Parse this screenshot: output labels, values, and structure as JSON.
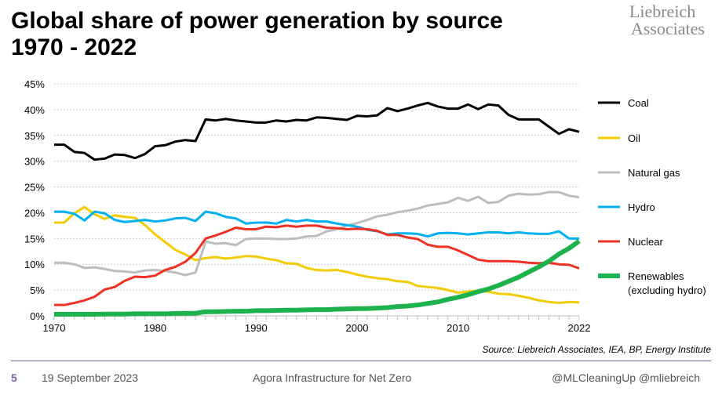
{
  "title_line1": "Global share of power generation by source",
  "title_line2": "1970 - 2022",
  "logo": [
    "Liebreich",
    "Associates"
  ],
  "source": "Source: Liebreich Associates, IEA, BP, Energy Institute",
  "footer": {
    "page": "5",
    "date": "19 September 2023",
    "event": "Agora Infrastructure for Net Zero",
    "handles": "@MLCleaningUp @mliebreich"
  },
  "chart_data": {
    "type": "line",
    "title": "Global share of power generation by source 1970 - 2022",
    "xlim": [
      1970,
      2022
    ],
    "ylim": [
      0,
      45
    ],
    "x_ticks": [
      "1970",
      "1980",
      "1990",
      "2000",
      "2010",
      "2022"
    ],
    "y_ticks": [
      "0%",
      "5%",
      "10%",
      "15%",
      "20%",
      "25%",
      "30%",
      "35%",
      "40%",
      "45%"
    ],
    "grid": true,
    "legend": "right",
    "x_start": 1970,
    "series": [
      {
        "name": "Coal",
        "color": "#000000",
        "width": 3,
        "values": [
          33.2,
          33.2,
          31.8,
          31.6,
          30.3,
          30.5,
          31.3,
          31.2,
          30.6,
          31.4,
          32.9,
          33.1,
          33.8,
          34.1,
          33.9,
          38.1,
          37.9,
          38.2,
          37.9,
          37.7,
          37.5,
          37.5,
          37.9,
          37.7,
          38.0,
          37.9,
          38.5,
          38.4,
          38.2,
          38.0,
          38.8,
          38.7,
          38.9,
          40.3,
          39.7,
          40.2,
          40.8,
          41.3,
          40.6,
          40.2,
          40.2,
          41.0,
          40.1,
          41.0,
          40.8,
          39.0,
          38.1,
          38.1,
          38.1,
          36.7,
          35.3,
          36.2,
          35.7
        ]
      },
      {
        "name": "Oil",
        "color": "#f2cc00",
        "width": 3,
        "values": [
          18.1,
          18.1,
          19.9,
          21.1,
          19.7,
          18.8,
          19.5,
          19.2,
          19.0,
          17.6,
          15.8,
          14.3,
          12.8,
          11.9,
          10.8,
          11.2,
          11.4,
          11.1,
          11.3,
          11.6,
          11.5,
          11.1,
          10.8,
          10.2,
          10.1,
          9.3,
          8.9,
          8.8,
          8.9,
          8.5,
          8.0,
          7.6,
          7.3,
          7.1,
          6.7,
          6.6,
          5.8,
          5.6,
          5.4,
          5.0,
          4.5,
          4.7,
          4.9,
          4.7,
          4.3,
          4.2,
          3.9,
          3.5,
          3.0,
          2.7,
          2.5,
          2.7,
          2.6
        ]
      },
      {
        "name": "Natural gas",
        "color": "#bdbdbd",
        "width": 3,
        "values": [
          10.3,
          10.3,
          10.0,
          9.3,
          9.4,
          9.1,
          8.7,
          8.6,
          8.4,
          8.8,
          8.9,
          8.7,
          8.4,
          7.9,
          8.4,
          14.4,
          14.0,
          14.1,
          13.7,
          14.9,
          15.0,
          15.0,
          14.9,
          14.9,
          15.0,
          15.4,
          15.5,
          16.4,
          16.8,
          17.5,
          18.0,
          18.6,
          19.3,
          19.6,
          20.1,
          20.4,
          20.8,
          21.4,
          21.7,
          22.0,
          22.9,
          22.3,
          23.1,
          21.9,
          22.1,
          23.3,
          23.7,
          23.5,
          23.6,
          24.0,
          24.0,
          23.3,
          23.0
        ]
      },
      {
        "name": "Hydro",
        "color": "#00b0f0",
        "width": 3,
        "values": [
          20.2,
          20.2,
          19.8,
          18.5,
          20.2,
          19.9,
          18.6,
          18.2,
          18.4,
          18.6,
          18.3,
          18.5,
          18.9,
          19.0,
          18.4,
          20.2,
          19.9,
          19.2,
          18.9,
          17.9,
          18.1,
          18.1,
          17.9,
          18.6,
          18.3,
          18.6,
          18.3,
          18.3,
          17.9,
          17.6,
          17.3,
          16.7,
          16.4,
          15.8,
          16.0,
          16.0,
          15.9,
          15.4,
          16.0,
          16.1,
          16.0,
          15.8,
          16.0,
          16.2,
          16.2,
          16.0,
          16.2,
          16.0,
          15.9,
          15.9,
          16.4,
          15.0,
          15.0
        ]
      },
      {
        "name": "Nuclear",
        "color": "#ee3124",
        "width": 3,
        "values": [
          2.1,
          2.1,
          2.5,
          3.0,
          3.7,
          5.1,
          5.6,
          6.8,
          7.6,
          7.5,
          7.8,
          8.9,
          9.5,
          10.5,
          12.2,
          15.0,
          15.6,
          16.3,
          17.1,
          16.8,
          16.8,
          17.3,
          17.2,
          17.5,
          17.3,
          17.5,
          17.5,
          17.1,
          17.0,
          16.8,
          16.9,
          16.8,
          16.5,
          15.7,
          15.7,
          15.2,
          14.9,
          13.8,
          13.4,
          13.4,
          12.7,
          11.8,
          10.9,
          10.6,
          10.6,
          10.6,
          10.5,
          10.3,
          10.2,
          10.3,
          10.0,
          9.9,
          9.2
        ]
      },
      {
        "name": "Renewables",
        "name_line2": "(excluding hydro)",
        "color": "#1db24b",
        "width": 6,
        "values": [
          0.3,
          0.3,
          0.3,
          0.3,
          0.3,
          0.35,
          0.35,
          0.35,
          0.4,
          0.4,
          0.4,
          0.4,
          0.45,
          0.5,
          0.5,
          0.8,
          0.8,
          0.85,
          0.9,
          0.9,
          1.0,
          1.0,
          1.05,
          1.1,
          1.1,
          1.15,
          1.2,
          1.2,
          1.3,
          1.35,
          1.4,
          1.4,
          1.5,
          1.6,
          1.8,
          1.9,
          2.1,
          2.4,
          2.7,
          3.2,
          3.6,
          4.1,
          4.7,
          5.2,
          5.9,
          6.7,
          7.5,
          8.5,
          9.5,
          10.6,
          12.0,
          13.1,
          14.5
        ]
      }
    ]
  }
}
